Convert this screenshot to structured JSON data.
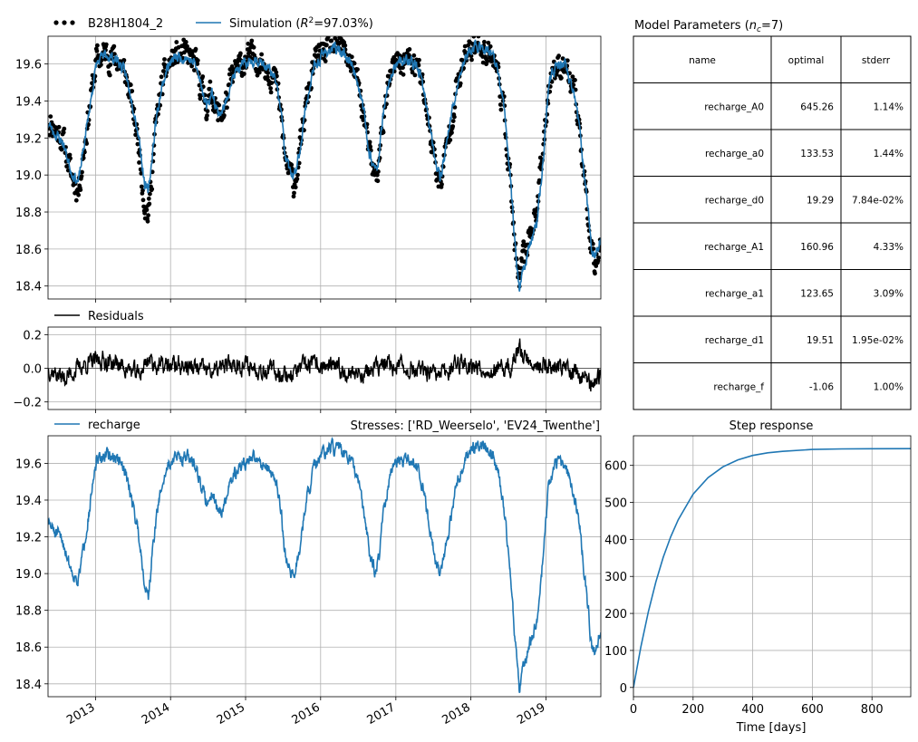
{
  "colors": {
    "observed": "#000000",
    "simulated": "#1f77b4",
    "residuals": "#000000",
    "grid": "#b0b0b0"
  },
  "legends": {
    "observed": "B28H1804_2",
    "simulation_prefix": "Simulation (",
    "simulation_r": "R",
    "simulation_sup": "2",
    "simulation_suffix": "=97.03%)",
    "residuals": "Residuals",
    "recharge": "recharge"
  },
  "stresses_label": "Stresses: ['RD_Weerselo', 'EV24_Twenthe']",
  "parameters": {
    "title_prefix": "Model Parameters (",
    "title_n": "n",
    "title_sub": "c",
    "title_suffix": "=7)",
    "headers": [
      "name",
      "optimal",
      "stderr"
    ],
    "rows": [
      [
        "recharge_A0",
        "645.26",
        "1.14%"
      ],
      [
        "recharge_a0",
        "133.53",
        "1.44%"
      ],
      [
        "recharge_d0",
        "19.29",
        "7.84e-02%"
      ],
      [
        "recharge_A1",
        "160.96",
        "4.33%"
      ],
      [
        "recharge_a1",
        "123.65",
        "3.09%"
      ],
      [
        "recharge_d1",
        "19.51",
        "1.95e-02%"
      ],
      [
        "recharge_f",
        "-1.06",
        "1.00%"
      ]
    ]
  },
  "chart_data": [
    {
      "id": "heads",
      "type": "line",
      "x_type": "date",
      "xlim": [
        "2012-05-15",
        "2019-09-25"
      ],
      "ylim": [
        18.33,
        19.75
      ],
      "yticks": [
        18.4,
        18.6,
        18.8,
        19.0,
        19.2,
        19.4,
        19.6
      ],
      "ytick_labels": [
        "18.4",
        "18.6",
        "18.8",
        "19.0",
        "19.2",
        "19.4",
        "19.6"
      ],
      "grid": true,
      "legend": "top, outside, horizontal",
      "series": [
        {
          "name": "B28H1804_2",
          "style": "dots",
          "noise": 0.06,
          "dates": [
            "2012-05-15",
            "2012-06-20",
            "2012-07-25",
            "2012-09-05",
            "2012-10-10",
            "2012-11-25",
            "2013-01-05",
            "2013-02-20",
            "2013-04-20",
            "2013-05-25",
            "2013-06-25",
            "2013-08-01",
            "2013-08-28",
            "2013-09-15",
            "2013-10-20",
            "2013-11-15",
            "2013-12-15",
            "2014-01-20",
            "2014-03-15",
            "2014-05-01",
            "2014-05-25",
            "2014-06-25",
            "2014-07-25",
            "2014-08-20",
            "2014-09-20",
            "2014-10-20",
            "2014-11-25",
            "2015-01-01",
            "2015-02-15",
            "2015-04-20",
            "2015-05-30",
            "2015-06-25",
            "2015-07-10",
            "2015-08-05",
            "2015-08-25",
            "2015-09-20",
            "2015-10-25",
            "2015-12-01",
            "2016-01-20",
            "2016-02-20",
            "2016-03-25",
            "2016-04-30",
            "2016-06-01",
            "2016-07-01",
            "2016-08-01",
            "2016-08-25",
            "2016-09-20",
            "2016-10-10",
            "2016-10-30",
            "2016-12-10",
            "2017-01-20",
            "2017-03-10",
            "2017-04-25",
            "2017-05-25",
            "2017-06-20",
            "2017-07-15",
            "2017-08-05",
            "2017-09-05",
            "2017-10-20",
            "2017-12-01",
            "2018-01-15",
            "2018-02-25",
            "2018-04-15",
            "2018-05-15",
            "2018-06-15",
            "2018-07-10",
            "2018-07-25",
            "2018-08-10",
            "2018-08-25",
            "2018-09-15",
            "2018-10-15",
            "2018-11-15",
            "2018-12-20",
            "2019-01-15",
            "2019-02-20",
            "2019-04-01",
            "2019-05-15",
            "2019-06-15",
            "2019-07-05",
            "2019-07-25",
            "2019-08-10",
            "2019-08-25",
            "2019-09-25"
          ],
          "values": [
            19.3,
            19.25,
            19.2,
            19.0,
            18.92,
            19.3,
            19.62,
            19.66,
            19.62,
            19.55,
            19.4,
            19.15,
            18.85,
            18.78,
            19.25,
            19.45,
            19.58,
            19.64,
            19.65,
            19.6,
            19.5,
            19.38,
            19.45,
            19.32,
            19.35,
            19.5,
            19.58,
            19.62,
            19.64,
            19.58,
            19.5,
            19.3,
            19.1,
            19.0,
            18.95,
            19.1,
            19.4,
            19.6,
            19.68,
            19.7,
            19.69,
            19.66,
            19.6,
            19.5,
            19.3,
            19.1,
            19.0,
            19.05,
            19.3,
            19.55,
            19.62,
            19.62,
            19.56,
            19.4,
            19.2,
            19.05,
            18.95,
            19.15,
            19.45,
            19.62,
            19.7,
            19.7,
            19.65,
            19.55,
            19.3,
            19.0,
            18.75,
            18.5,
            18.42,
            18.55,
            18.7,
            18.8,
            19.15,
            19.5,
            19.6,
            19.6,
            19.45,
            19.25,
            18.98,
            18.8,
            18.62,
            18.55,
            18.62
          ]
        },
        {
          "name": "Simulation",
          "style": "line",
          "noise": 0.025,
          "dates": [
            "2012-05-15",
            "2012-06-20",
            "2012-07-25",
            "2012-09-05",
            "2012-10-10",
            "2012-11-25",
            "2013-01-05",
            "2013-02-20",
            "2013-04-20",
            "2013-05-25",
            "2013-06-25",
            "2013-08-01",
            "2013-08-28",
            "2013-09-15",
            "2013-10-20",
            "2013-11-15",
            "2013-12-15",
            "2014-01-20",
            "2014-03-15",
            "2014-05-01",
            "2014-05-25",
            "2014-06-25",
            "2014-07-25",
            "2014-08-20",
            "2014-09-20",
            "2014-10-20",
            "2014-11-25",
            "2015-01-01",
            "2015-02-15",
            "2015-04-20",
            "2015-05-30",
            "2015-06-25",
            "2015-07-10",
            "2015-08-05",
            "2015-08-25",
            "2015-09-20",
            "2015-10-25",
            "2015-12-01",
            "2016-01-20",
            "2016-02-20",
            "2016-03-25",
            "2016-04-30",
            "2016-06-01",
            "2016-07-01",
            "2016-08-01",
            "2016-08-25",
            "2016-09-20",
            "2016-10-10",
            "2016-10-30",
            "2016-12-10",
            "2017-01-20",
            "2017-03-10",
            "2017-04-25",
            "2017-05-25",
            "2017-06-20",
            "2017-07-15",
            "2017-08-05",
            "2017-09-05",
            "2017-10-20",
            "2017-12-01",
            "2018-01-15",
            "2018-02-25",
            "2018-04-15",
            "2018-05-15",
            "2018-06-15",
            "2018-07-10",
            "2018-07-25",
            "2018-08-10",
            "2018-08-25",
            "2018-09-15",
            "2018-10-15",
            "2018-11-15",
            "2018-12-20",
            "2019-01-15",
            "2019-02-20",
            "2019-04-01",
            "2019-05-15",
            "2019-06-15",
            "2019-07-05",
            "2019-07-25",
            "2019-08-10",
            "2019-08-25",
            "2019-09-25"
          ],
          "values": [
            19.28,
            19.22,
            19.18,
            19.02,
            18.96,
            19.3,
            19.6,
            19.65,
            19.62,
            19.55,
            19.42,
            19.2,
            18.95,
            18.9,
            19.28,
            19.45,
            19.58,
            19.63,
            19.64,
            19.6,
            19.5,
            19.38,
            19.45,
            19.33,
            19.36,
            19.5,
            19.57,
            19.6,
            19.63,
            19.58,
            19.5,
            19.32,
            19.12,
            19.02,
            18.98,
            19.12,
            19.4,
            19.58,
            19.66,
            19.68,
            19.68,
            19.65,
            19.6,
            19.5,
            19.32,
            19.12,
            19.02,
            19.08,
            19.32,
            19.55,
            19.61,
            19.62,
            19.56,
            19.4,
            19.22,
            19.08,
            18.98,
            19.18,
            19.45,
            19.62,
            19.69,
            19.7,
            19.65,
            19.55,
            19.32,
            19.02,
            18.78,
            18.55,
            18.38,
            18.5,
            18.62,
            18.72,
            19.1,
            19.5,
            19.6,
            19.6,
            19.45,
            19.25,
            19.0,
            18.82,
            18.62,
            18.56,
            18.66
          ]
        }
      ]
    },
    {
      "id": "residuals",
      "type": "line",
      "x_type": "date",
      "xlim": [
        "2012-05-15",
        "2019-09-25"
      ],
      "ylim": [
        -0.245,
        0.245
      ],
      "yticks": [
        -0.2,
        0.0,
        0.2
      ],
      "ytick_labels": [
        "−0.2",
        "0.0",
        "0.2"
      ],
      "grid": true,
      "series": [
        {
          "name": "Residuals",
          "style": "line",
          "noise": 0.045,
          "dates": [
            "2012-05-15",
            "2012-08-01",
            "2012-11-01",
            "2013-02-01",
            "2013-05-01",
            "2013-08-01",
            "2013-09-15",
            "2013-11-01",
            "2014-02-01",
            "2014-05-01",
            "2014-08-01",
            "2014-11-01",
            "2015-02-01",
            "2015-05-01",
            "2015-08-01",
            "2015-11-01",
            "2016-02-01",
            "2016-05-01",
            "2016-08-01",
            "2016-11-01",
            "2017-02-01",
            "2017-05-01",
            "2017-08-01",
            "2017-11-01",
            "2018-02-01",
            "2018-05-01",
            "2018-07-15",
            "2018-08-25",
            "2018-10-01",
            "2018-12-01",
            "2019-03-01",
            "2019-06-01",
            "2019-08-01",
            "2019-09-25"
          ],
          "values": [
            0.0,
            -0.06,
            0.02,
            0.05,
            0.02,
            -0.04,
            0.06,
            0.01,
            0.02,
            0.0,
            -0.02,
            0.03,
            0.01,
            -0.01,
            -0.04,
            0.02,
            0.01,
            -0.02,
            -0.03,
            0.02,
            0.01,
            -0.02,
            -0.05,
            0.04,
            0.01,
            -0.02,
            0.0,
            0.12,
            0.05,
            0.02,
            0.01,
            -0.02,
            -0.08,
            -0.06
          ]
        }
      ]
    },
    {
      "id": "recharge",
      "type": "line",
      "x_type": "date",
      "xlim": [
        "2012-05-15",
        "2019-09-25"
      ],
      "xticks": [
        "2013-01-01",
        "2014-01-01",
        "2015-01-01",
        "2016-01-01",
        "2017-01-01",
        "2018-01-01",
        "2019-01-01"
      ],
      "xtick_labels": [
        "2013",
        "2014",
        "2015",
        "2016",
        "2017",
        "2018",
        "2019"
      ],
      "ylim": [
        18.33,
        19.75
      ],
      "yticks": [
        18.4,
        18.6,
        18.8,
        19.0,
        19.2,
        19.4,
        19.6
      ],
      "ytick_labels": [
        "18.4",
        "18.6",
        "18.8",
        "19.0",
        "19.2",
        "19.4",
        "19.6"
      ],
      "grid": true,
      "series": [
        {
          "name": "recharge",
          "style": "line",
          "noise": 0.03,
          "dates": [
            "2012-05-15",
            "2012-06-20",
            "2012-07-25",
            "2012-09-05",
            "2012-10-10",
            "2012-11-25",
            "2013-01-05",
            "2013-02-20",
            "2013-04-20",
            "2013-05-25",
            "2013-06-25",
            "2013-08-01",
            "2013-08-28",
            "2013-09-15",
            "2013-10-20",
            "2013-11-15",
            "2013-12-15",
            "2014-01-20",
            "2014-03-15",
            "2014-05-01",
            "2014-05-25",
            "2014-06-25",
            "2014-07-25",
            "2014-08-20",
            "2014-09-20",
            "2014-10-20",
            "2014-11-25",
            "2015-01-01",
            "2015-02-15",
            "2015-04-20",
            "2015-05-30",
            "2015-06-25",
            "2015-07-10",
            "2015-08-05",
            "2015-08-25",
            "2015-09-20",
            "2015-10-25",
            "2015-12-01",
            "2016-01-20",
            "2016-02-20",
            "2016-03-25",
            "2016-04-30",
            "2016-06-01",
            "2016-07-01",
            "2016-08-01",
            "2016-08-25",
            "2016-09-20",
            "2016-10-10",
            "2016-10-30",
            "2016-12-10",
            "2017-01-20",
            "2017-03-10",
            "2017-04-25",
            "2017-05-25",
            "2017-06-20",
            "2017-07-15",
            "2017-08-05",
            "2017-09-05",
            "2017-10-20",
            "2017-12-01",
            "2018-01-15",
            "2018-02-25",
            "2018-04-15",
            "2018-05-15",
            "2018-06-15",
            "2018-07-10",
            "2018-07-25",
            "2018-08-10",
            "2018-08-25",
            "2018-09-15",
            "2018-10-15",
            "2018-11-15",
            "2018-12-20",
            "2019-01-15",
            "2019-02-20",
            "2019-04-01",
            "2019-05-15",
            "2019-06-15",
            "2019-07-05",
            "2019-07-25",
            "2019-08-10",
            "2019-08-25",
            "2019-09-25"
          ],
          "values": [
            19.28,
            19.22,
            19.18,
            19.02,
            18.96,
            19.3,
            19.6,
            19.65,
            19.62,
            19.55,
            19.42,
            19.2,
            18.95,
            18.88,
            19.28,
            19.45,
            19.58,
            19.63,
            19.64,
            19.6,
            19.5,
            19.38,
            19.45,
            19.33,
            19.36,
            19.5,
            19.57,
            19.6,
            19.63,
            19.58,
            19.5,
            19.32,
            19.12,
            19.02,
            18.98,
            19.12,
            19.4,
            19.58,
            19.66,
            19.68,
            19.68,
            19.65,
            19.6,
            19.5,
            19.32,
            19.12,
            19.02,
            19.08,
            19.32,
            19.55,
            19.61,
            19.62,
            19.56,
            19.4,
            19.22,
            19.08,
            18.98,
            19.18,
            19.45,
            19.62,
            19.69,
            19.7,
            19.65,
            19.55,
            19.32,
            19.02,
            18.78,
            18.55,
            18.38,
            18.5,
            18.62,
            18.72,
            19.1,
            19.5,
            19.6,
            19.6,
            19.45,
            19.25,
            19.0,
            18.82,
            18.6,
            18.58,
            18.68
          ]
        }
      ]
    },
    {
      "id": "step",
      "type": "line",
      "title": "Step response",
      "xlabel": "Time [days]",
      "xlim": [
        0,
        930
      ],
      "ylim": [
        -25,
        680
      ],
      "xticks": [
        0,
        200,
        400,
        600,
        800
      ],
      "xtick_labels": [
        "0",
        "200",
        "400",
        "600",
        "800"
      ],
      "yticks": [
        0,
        100,
        200,
        300,
        400,
        500,
        600
      ],
      "ytick_labels": [
        "0",
        "100",
        "200",
        "300",
        "400",
        "500",
        "600"
      ],
      "grid": true,
      "series": [
        {
          "name": "recharge",
          "x": [
            0,
            25,
            50,
            75,
            100,
            125,
            150,
            200,
            250,
            300,
            350,
            400,
            450,
            500,
            600,
            700,
            800,
            930
          ],
          "values": [
            0,
            110,
            205,
            285,
            352,
            407,
            453,
            522,
            567,
            596,
            615,
            627,
            634,
            638,
            643,
            644.5,
            645,
            645.2
          ]
        }
      ]
    }
  ]
}
